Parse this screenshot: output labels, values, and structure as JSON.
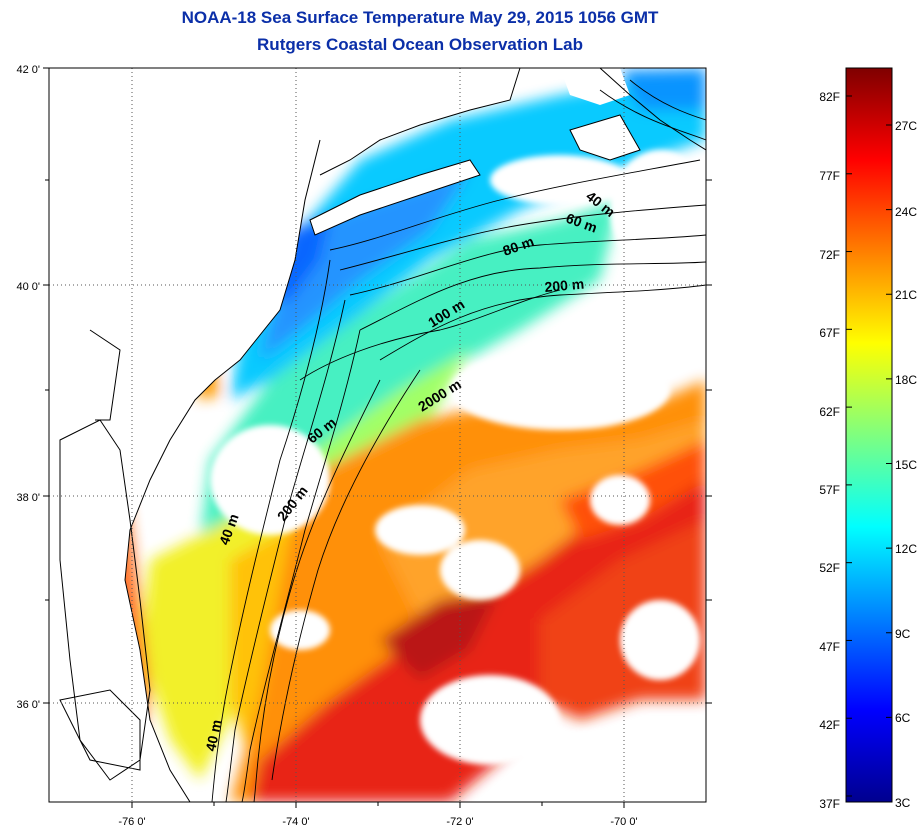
{
  "title": {
    "line1": "NOAA-18 Sea Surface Temperature May 29, 2015 1056 GMT",
    "line2": "Rutgers Coastal Ocean Observation Lab"
  },
  "map": {
    "lat_ticks": [
      "42 0'",
      "40 0'",
      "38 0'",
      "36 0'"
    ],
    "lon_ticks": [
      "-76 0'",
      "-74 0'",
      "-72 0'",
      "-70 0'"
    ],
    "contour_labels": [
      "40 m",
      "60 m",
      "80 m",
      "200 m",
      "100 m",
      "2000 m",
      "60 m",
      "200 m",
      "40 m",
      "40 m"
    ],
    "colors": {
      "land": "#ffffff",
      "coast": "#000000",
      "grid": "#555555"
    }
  },
  "colorbar": {
    "fahrenheit": [
      "82F",
      "77F",
      "72F",
      "67F",
      "62F",
      "57F",
      "52F",
      "47F",
      "42F",
      "37F"
    ],
    "celsius": [
      "27C",
      "24C",
      "21C",
      "18C",
      "15C",
      "12C",
      "9C",
      "6C",
      "3C"
    ],
    "colors": [
      "#00008f",
      "#0000ff",
      "#007fff",
      "#00ffff",
      "#7fff7f",
      "#ffff00",
      "#ff7f00",
      "#ff0000",
      "#7f0000"
    ]
  }
}
